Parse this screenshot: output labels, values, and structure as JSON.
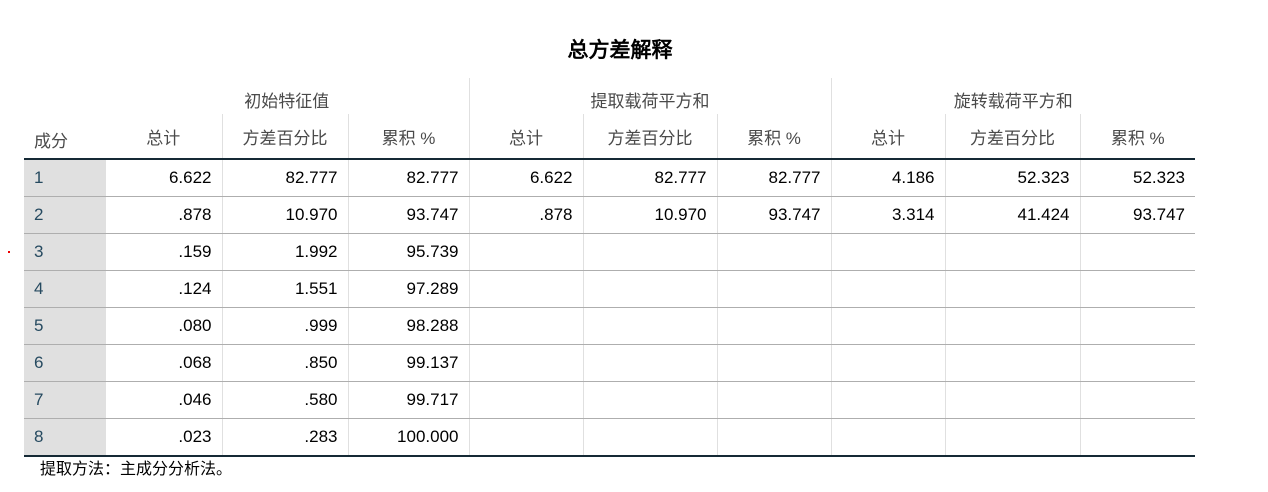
{
  "title": "总方差解释",
  "row_header": "成分",
  "groups": [
    "初始特征值",
    "提取载荷平方和",
    "旋转载荷平方和"
  ],
  "subheaders": [
    "总计",
    "方差百分比",
    "累积 %"
  ],
  "rows": [
    {
      "label": "1",
      "values": [
        "6.622",
        "82.777",
        "82.777",
        "6.622",
        "82.777",
        "82.777",
        "4.186",
        "52.323",
        "52.323"
      ]
    },
    {
      "label": "2",
      "values": [
        ".878",
        "10.970",
        "93.747",
        ".878",
        "10.970",
        "93.747",
        "3.314",
        "41.424",
        "93.747"
      ]
    },
    {
      "label": "3",
      "values": [
        ".159",
        "1.992",
        "95.739",
        "",
        "",
        "",
        "",
        "",
        ""
      ]
    },
    {
      "label": "4",
      "values": [
        ".124",
        "1.551",
        "97.289",
        "",
        "",
        "",
        "",
        "",
        ""
      ]
    },
    {
      "label": "5",
      "values": [
        ".080",
        ".999",
        "98.288",
        "",
        "",
        "",
        "",
        "",
        ""
      ]
    },
    {
      "label": "6",
      "values": [
        ".068",
        ".850",
        "99.137",
        "",
        "",
        "",
        "",
        "",
        ""
      ]
    },
    {
      "label": "7",
      "values": [
        ".046",
        ".580",
        "99.717",
        "",
        "",
        "",
        "",
        "",
        ""
      ]
    },
    {
      "label": "8",
      "values": [
        ".023",
        ".283",
        "100.000",
        "",
        "",
        "",
        "",
        "",
        ""
      ]
    }
  ],
  "footnote": "提取方法：主成分分析法。",
  "colors": {
    "row_label_bg": "#e0e0e0",
    "row_label_text": "#264a60",
    "rule": "#152935"
  }
}
